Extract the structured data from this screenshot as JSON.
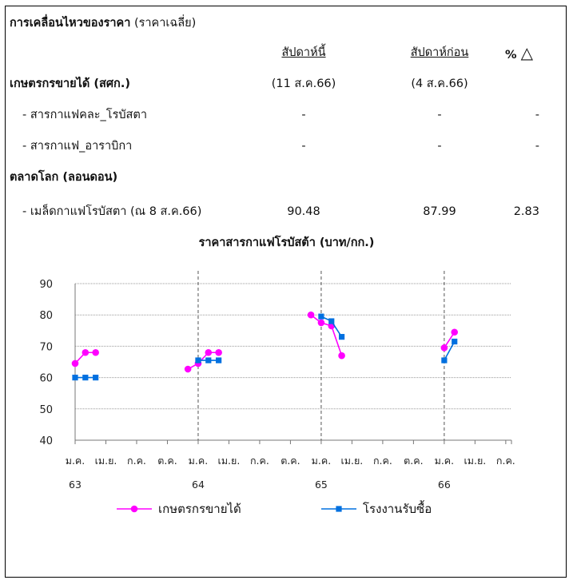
{
  "table": {
    "title_bold": "การเคลื่อนไหวของราคา",
    "title_note": "(ราคาเฉลี่ย)",
    "col_this_week": "สัปดาห์นี้",
    "col_last_week": "สัปดาห์ก่อน",
    "col_pct": "%",
    "col_pct_symbol": "△",
    "section1": "เกษตรกรขายได้ (สศก.)",
    "section1_this_date": "(11 ส.ค.66)",
    "section1_last_date": "(4 ส.ค.66)",
    "rows1": [
      {
        "label": "- สารกาแฟคละ_โรบัสตา",
        "this": "-",
        "last": "-",
        "pct": "-"
      },
      {
        "label": "- สารกาแฟ_อาราบิกา",
        "this": "-",
        "last": "-",
        "pct": "-"
      }
    ],
    "section2": "ตลาดโลก (ลอนดอน)",
    "rows2": [
      {
        "label": "- เมล็ดกาแฟโรบัสตา (ณ 8 ส.ค.66)",
        "this": "90.48",
        "last": "87.99",
        "pct": "2.83"
      }
    ]
  },
  "chart_data": {
    "type": "line",
    "title": "ราคาสารกาแฟโรบัสต้า (บาท/กก.)",
    "xlabel": "",
    "ylabel": "",
    "ylim": [
      40,
      90
    ],
    "yticks": [
      40,
      50,
      60,
      70,
      80,
      90
    ],
    "x_tick_labels": [
      "ม.ค.",
      "เม.ย.",
      "ก.ค.",
      "ต.ค.",
      "ม.ค.",
      "เม.ย.",
      "ก.ค.",
      "ต.ค.",
      "ม.ค.",
      "เม.ย.",
      "ก.ค.",
      "ต.ค.",
      "ม.ค.",
      "เม.ย.",
      "ก.ค."
    ],
    "year_labels": [
      {
        "label": "63",
        "tick_index": 0
      },
      {
        "label": "64",
        "tick_index": 4
      },
      {
        "label": "65",
        "tick_index": 8
      },
      {
        "label": "66",
        "tick_index": 12
      }
    ],
    "year_dividers": [
      4,
      8,
      12
    ],
    "series": [
      {
        "name": "เกษตรกรขายได้",
        "color": "#ff00ff",
        "marker": "circle",
        "segments": [
          [
            {
              "x": "2563-01",
              "y": 64.5
            },
            {
              "x": "2563-02",
              "y": 68
            },
            {
              "x": "2563-03",
              "y": 68
            }
          ],
          [
            {
              "x": "2563-12",
              "y": 62.7
            },
            {
              "x": "2564-01",
              "y": 64.5
            },
            {
              "x": "2564-02",
              "y": 68
            },
            {
              "x": "2564-03",
              "y": 68
            }
          ],
          [
            {
              "x": "2564-12",
              "y": 80
            },
            {
              "x": "2565-01",
              "y": 77.5
            },
            {
              "x": "2565-02",
              "y": 76.5
            },
            {
              "x": "2565-03",
              "y": 67
            }
          ],
          [
            {
              "x": "2566-01",
              "y": 69.5
            },
            {
              "x": "2566-02",
              "y": 74.5
            }
          ]
        ]
      },
      {
        "name": "โรงงานรับซื้อ",
        "color": "#0070e0",
        "marker": "square",
        "segments": [
          [
            {
              "x": "2563-01",
              "y": 60
            },
            {
              "x": "2563-02",
              "y": 60
            },
            {
              "x": "2563-03",
              "y": 60
            }
          ],
          [
            {
              "x": "2564-01",
              "y": 65.5
            },
            {
              "x": "2564-02",
              "y": 65.5
            },
            {
              "x": "2564-03",
              "y": 65.5
            }
          ],
          [
            {
              "x": "2565-01",
              "y": 79.5
            },
            {
              "x": "2565-02",
              "y": 78
            },
            {
              "x": "2565-03",
              "y": 73
            }
          ],
          [
            {
              "x": "2566-01",
              "y": 65.5
            },
            {
              "x": "2566-02",
              "y": 71.5
            }
          ]
        ]
      }
    ],
    "legend_placement": "bottom"
  }
}
